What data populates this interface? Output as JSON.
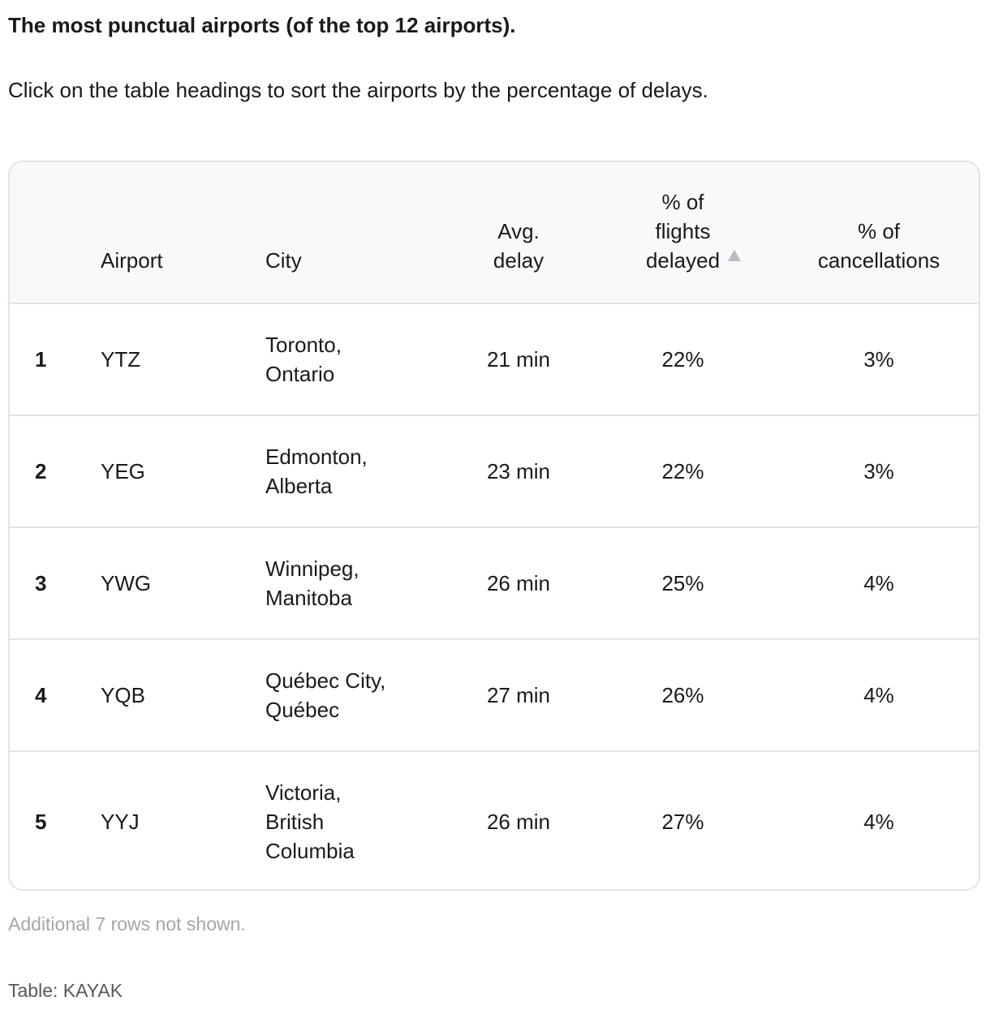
{
  "title": "The most punctual airports (of the top 12 airports).",
  "subtitle": "Click on the table headings to sort the airports by the percentage of delays.",
  "table": {
    "headers": {
      "rank": "",
      "airport": "Airport",
      "city": "City",
      "avg_delay_line1": "Avg.",
      "avg_delay_line2": "delay",
      "pct_delayed_line1": "% of",
      "pct_delayed_line2": "flights",
      "pct_delayed_line3": "delayed",
      "pct_cancel_line1": "% of",
      "pct_cancel_line2": "cancellations"
    },
    "sort": {
      "column": "pct_delayed",
      "direction": "ascending",
      "icon": "sort-ascending-icon",
      "icon_color": "#b9bcc2"
    },
    "rows": [
      {
        "rank": "1",
        "airport": "YTZ",
        "city_lines": [
          "Toronto,",
          "Ontario"
        ],
        "avg_delay": "21 min",
        "pct_delayed": "22%",
        "pct_cancel": "3%"
      },
      {
        "rank": "2",
        "airport": "YEG",
        "city_lines": [
          "Edmonton,",
          "Alberta"
        ],
        "avg_delay": "23 min",
        "pct_delayed": "22%",
        "pct_cancel": "3%"
      },
      {
        "rank": "3",
        "airport": "YWG",
        "city_lines": [
          "Winnipeg,",
          "Manitoba"
        ],
        "avg_delay": "26 min",
        "pct_delayed": "25%",
        "pct_cancel": "4%"
      },
      {
        "rank": "4",
        "airport": "YQB",
        "city_lines": [
          "Québec City,",
          "Québec"
        ],
        "avg_delay": "27 min",
        "pct_delayed": "26%",
        "pct_cancel": "4%"
      },
      {
        "rank": "5",
        "airport": "YYJ",
        "city_lines": [
          "Victoria,",
          "British",
          "Columbia"
        ],
        "avg_delay": "26 min",
        "pct_delayed": "27%",
        "pct_cancel": "4%"
      }
    ]
  },
  "note": "Additional 7 rows not shown.",
  "source": "Table: KAYAK"
}
